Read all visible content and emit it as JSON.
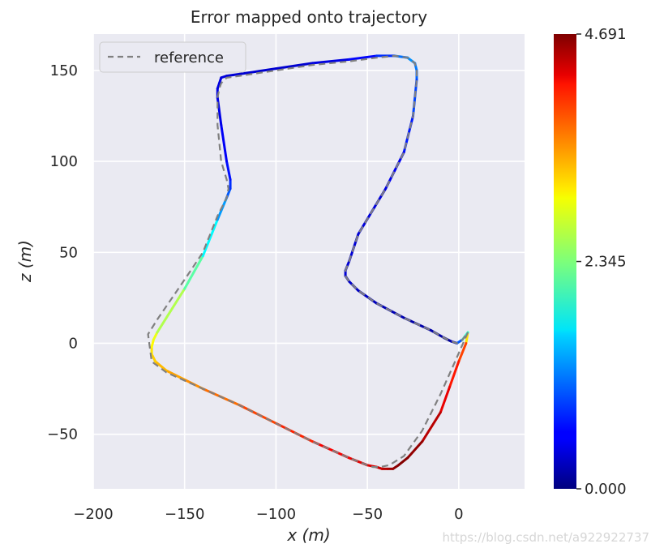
{
  "chart_data": {
    "type": "line",
    "title": "Error mapped onto trajectory",
    "xlabel": "x (m)",
    "ylabel": "z (m)",
    "xlim": [
      -200,
      36
    ],
    "ylim": [
      -80,
      170
    ],
    "xticks": [
      -200,
      -150,
      -100,
      -50,
      0
    ],
    "xtick_labels": [
      "−200",
      "−150",
      "−100",
      "−50",
      "0"
    ],
    "yticks": [
      -50,
      0,
      50,
      100,
      150
    ],
    "ytick_labels": [
      "−50",
      "0",
      "50",
      "100",
      "150"
    ],
    "grid": true,
    "legend_position": "top-left",
    "series": [
      {
        "name": "reference",
        "style": "dashed",
        "color": "#808080",
        "x": [
          5,
          -2,
          -10,
          -20,
          -30,
          -38,
          -43,
          -47,
          -50,
          -60,
          -80,
          -100,
          -120,
          -140,
          -160,
          -168,
          -170,
          -165,
          -150,
          -140,
          -132,
          -127,
          -126,
          -127,
          -130,
          -132,
          -132,
          -131,
          -130,
          -127,
          -120,
          -100,
          -80,
          -60,
          -45,
          -35,
          -28,
          -24,
          -23,
          -23,
          -25,
          -30,
          -40,
          -55,
          -60,
          -62,
          -62,
          -60,
          -55,
          -45,
          -30,
          -15,
          -8,
          -4,
          -1,
          2,
          5
        ],
        "y": [
          6,
          -10,
          -28,
          -48,
          -62,
          -67,
          -68,
          -68,
          -67,
          -63,
          -54,
          -44,
          -34,
          -25,
          -16,
          -10,
          5,
          13,
          35,
          50,
          70,
          80,
          85,
          90,
          100,
          120,
          135,
          140,
          143,
          146,
          147,
          150,
          153,
          155,
          157,
          158,
          157,
          154,
          150,
          145,
          125,
          105,
          85,
          60,
          45,
          40,
          37,
          34,
          29,
          22,
          14,
          7,
          3,
          1,
          0,
          2,
          6
        ]
      },
      {
        "name": "",
        "style": "solid",
        "colormap": "jet",
        "x": [
          5,
          4,
          0,
          -5,
          -10,
          -20,
          -28,
          -33,
          -36,
          -39,
          -42,
          -45,
          -50,
          -60,
          -80,
          -100,
          -120,
          -140,
          -150,
          -160,
          -166,
          -168,
          -168,
          -167,
          -165,
          -150,
          -140,
          -132,
          -127,
          -125,
          -125,
          -127,
          -130,
          -132,
          -132,
          -131,
          -130,
          -127,
          -120,
          -100,
          -80,
          -60,
          -45,
          -35,
          -28,
          -24,
          -23,
          -23,
          -25,
          -30,
          -40,
          -55,
          -60,
          -62,
          -62,
          -60,
          -55,
          -45,
          -30,
          -15,
          -8,
          -4,
          -1,
          2,
          5
        ],
        "y": [
          6,
          0,
          -10,
          -24,
          -38,
          -54,
          -63,
          -67,
          -69,
          -69,
          -69,
          -68,
          -67,
          -63,
          -54,
          -44,
          -34,
          -25,
          -20,
          -15,
          -10,
          -6,
          -2,
          2,
          6,
          30,
          48,
          68,
          80,
          85,
          90,
          100,
          120,
          135,
          140,
          143,
          146,
          147,
          148,
          151,
          154,
          156,
          158,
          158,
          157,
          154,
          150,
          145,
          125,
          105,
          85,
          60,
          45,
          40,
          37,
          34,
          29,
          22,
          14,
          7,
          3,
          1,
          0,
          2,
          6
        ],
        "error": [
          2.4,
          3.7,
          3.9,
          4.1,
          4.3,
          4.55,
          4.65,
          4.691,
          4.6,
          4.5,
          4.4,
          4.3,
          4.2,
          4.25,
          4.0,
          3.9,
          3.7,
          3.5,
          3.4,
          3.3,
          3.2,
          3.1,
          3.0,
          2.9,
          2.8,
          2.35,
          2.0,
          1.5,
          1.1,
          0.9,
          0.7,
          0.6,
          0.5,
          0.45,
          0.45,
          0.45,
          0.45,
          0.4,
          0.4,
          0.35,
          0.4,
          0.5,
          0.7,
          0.9,
          1.3,
          1.2,
          1.1,
          1.0,
          0.8,
          0.6,
          0.45,
          0.4,
          0.4,
          0.4,
          0.4,
          0.4,
          0.3,
          0.3,
          0.2,
          0.2,
          0.15,
          0.1,
          0.5,
          1.5,
          2.4
        ]
      }
    ],
    "colorbar": {
      "colormap": "jet",
      "min": 0.0,
      "max": 4.691,
      "ticks": [
        0.0,
        2.345,
        4.691
      ],
      "tick_labels": [
        "0.000",
        "2.345",
        "4.691"
      ]
    },
    "legend": [
      {
        "label": "reference",
        "style": "dashed",
        "color": "#808080"
      }
    ],
    "colors": {
      "plot_background": "#eaeaf2",
      "grid": "#ffffff",
      "reference_line": "#808080"
    }
  },
  "watermark": "https://blog.csdn.net/a922922737"
}
